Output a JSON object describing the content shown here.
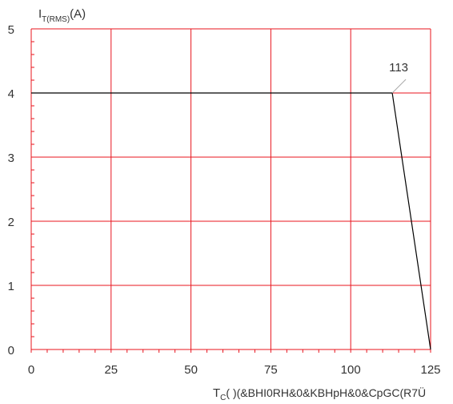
{
  "chart_data": {
    "type": "line",
    "ylabel": {
      "main": "I",
      "sub": "T(RMS)",
      "unit": "(A)"
    },
    "xlabel": {
      "main": "T",
      "sub": "C",
      "rest": "(    )(&BHI0RH&0&KBHpH&0&CpGC(R7Ü"
    },
    "xlim": [
      0,
      125
    ],
    "ylim": [
      0,
      5
    ],
    "x_ticks": [
      0,
      25,
      50,
      75,
      100,
      125
    ],
    "y_ticks": [
      0,
      1,
      2,
      3,
      4,
      5
    ],
    "x_tick_labels": [
      "0",
      "25",
      "50",
      "75",
      "100",
      "125"
    ],
    "y_tick_labels": [
      "0",
      "1",
      "2",
      "3",
      "4",
      "5"
    ],
    "grid": true,
    "grid_color": "#e8141e",
    "series": [
      {
        "x": [
          0,
          113,
          125
        ],
        "y": [
          4,
          4,
          0
        ],
        "color": "#000000"
      }
    ],
    "annotations": [
      {
        "text": "113",
        "x": 113,
        "y": 4
      }
    ]
  }
}
